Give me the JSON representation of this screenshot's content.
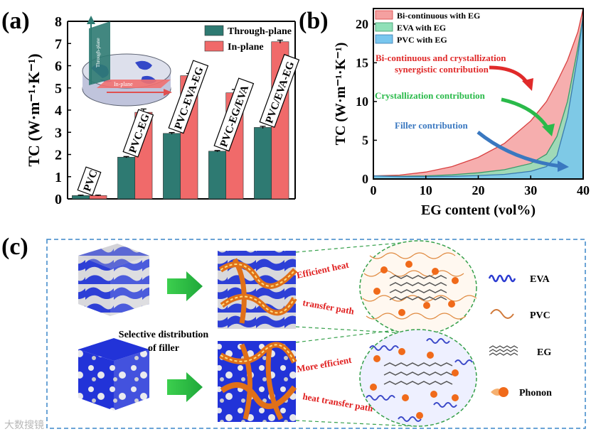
{
  "panel_labels": {
    "a": "(a)",
    "b": "(b)",
    "c": "(c)"
  },
  "chart_data": [
    {
      "type": "bar",
      "ylabel": "TC (W·m⁻¹·K⁻¹)",
      "ylim": [
        0,
        8
      ],
      "yticks": [
        "0",
        "1",
        "2",
        "3",
        "4",
        "5",
        "6",
        "7",
        "8"
      ],
      "categories": [
        "PVC",
        "PVC-EG",
        "PVC-EVA-EG",
        "PVC-EG/EVA",
        "PVC/EVA-EG"
      ],
      "series": [
        {
          "name": "Through-plane",
          "color": "#2e7a72",
          "values": [
            0.15,
            1.88,
            2.95,
            2.15,
            3.22
          ],
          "errors": [
            0.02,
            0.03,
            0.04,
            0.03,
            0.05
          ]
        },
        {
          "name": "In-plane",
          "color": "#f06a6a",
          "values": [
            0.15,
            3.9,
            5.55,
            4.78,
            7.08
          ],
          "errors": [
            0.02,
            0.15,
            0.1,
            0.15,
            0.07
          ]
        }
      ],
      "legend": "top-right",
      "inset": {
        "through_label": "Through-plane",
        "in_label": "In-plane"
      }
    },
    {
      "type": "area",
      "xlabel": "EG content (vol%)",
      "ylabel": "TC (W·m⁻¹·K⁻¹)",
      "xlim": [
        0,
        40
      ],
      "ylim": [
        0,
        22
      ],
      "xticks": [
        "0",
        "10",
        "20",
        "30",
        "40"
      ],
      "yticks": [
        "0",
        "5",
        "10",
        "15",
        "20"
      ],
      "x": [
        0,
        5,
        10,
        15,
        20,
        25,
        30,
        33,
        35,
        37,
        39,
        40
      ],
      "series": [
        {
          "name": "Bi-continuous with EG",
          "color": "#f4a0a0",
          "line": "#d94040",
          "values": [
            0.4,
            0.5,
            0.9,
            1.6,
            2.8,
            4.6,
            7.5,
            10,
            12.5,
            15.3,
            19,
            22
          ]
        },
        {
          "name": "EVA with EG",
          "color": "#8fe0b8",
          "line": "#3a9a6a",
          "values": [
            0.4,
            0.35,
            0.4,
            0.55,
            0.8,
            1.2,
            2.0,
            3.2,
            5.5,
            10,
            17,
            21
          ]
        },
        {
          "name": "PVC with EG",
          "color": "#78c6ee",
          "line": "#3a7ab0",
          "values": [
            0.4,
            0.3,
            0.3,
            0.35,
            0.45,
            0.6,
            1.0,
            1.6,
            3.0,
            8.0,
            16,
            21
          ]
        }
      ],
      "legend": "top-left",
      "annotations": [
        "Bi-continuous and crystallization",
        "synergistic contribution",
        "Crystallization contribution",
        "Filler contribution"
      ]
    }
  ],
  "schematic": {
    "top_text": [
      "Efficient heat",
      "transfer path"
    ],
    "bottom_text": [
      "More efficient",
      "heat transfer path"
    ],
    "middle_text": [
      "Selective distribution",
      "of filler"
    ],
    "legend": [
      {
        "label": "EVA",
        "icon": "eva-chain-icon"
      },
      {
        "label": "PVC",
        "icon": "pvc-chain-icon"
      },
      {
        "label": "EG",
        "icon": "eg-sheet-icon"
      },
      {
        "label": "Phonon",
        "icon": "phonon-icon"
      }
    ]
  },
  "watermark": "大数搜镜"
}
